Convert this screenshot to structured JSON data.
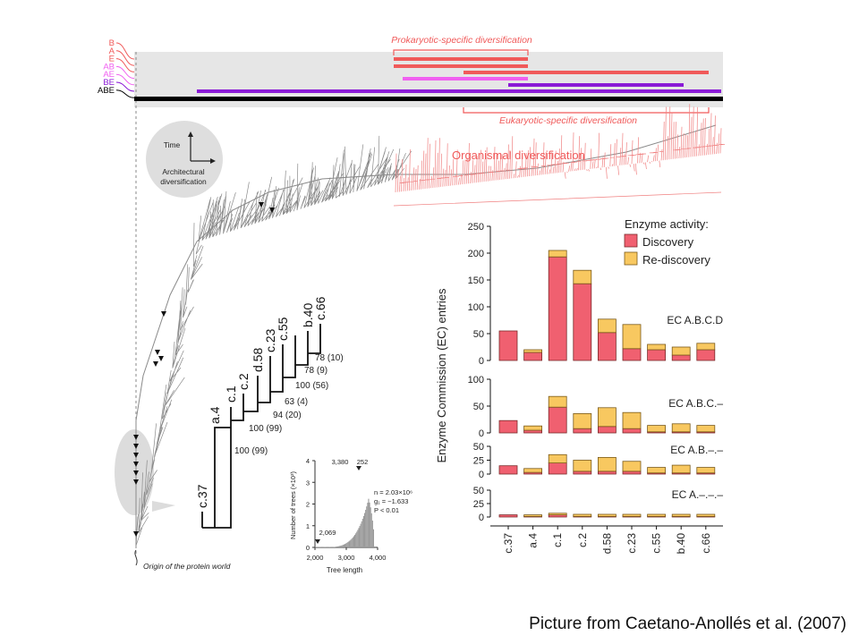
{
  "colors": {
    "prokaryotic": "#f05a5a",
    "pink": "#f060f0",
    "purple": "#8a1ad6",
    "black": "#000000",
    "tree_gray": "#8a8a8a",
    "tree_red": "#f08080",
    "discovery": "#f06070",
    "rediscovery": "#f8c860",
    "panel_gray": "#e6e6e6"
  },
  "timeline": {
    "labels": [
      "B",
      "A",
      "E",
      "AB",
      "AE",
      "BE",
      "ABE"
    ],
    "label_colors": [
      "#f05a5a",
      "#f05a5a",
      "#f05a5a",
      "#f060f0",
      "#f060f0",
      "#8a1ad6",
      "#000000"
    ],
    "prokaryotic_label": "Prokaryotic-specific diversification",
    "eukaryotic_label": "Eukaryotic-specific diversification"
  },
  "tree": {
    "organismal_label": "Organismal diversification",
    "axis_time": "Time",
    "axis_arch_line1": "Architectural",
    "axis_arch_line2": "diversification",
    "origin_label": "Origin of the protein world"
  },
  "subtree": {
    "leaves": [
      "c.37",
      "a.4",
      "c.1",
      "c.2",
      "d.58",
      "c.23",
      "c.55",
      "b.40",
      "c.66"
    ],
    "support": [
      "78 (10)",
      "78 (9)",
      "100 (56)",
      "63 (4)",
      "94 (20)",
      "100 (99)",
      "100 (99)"
    ]
  },
  "histogram": {
    "ylabel": "Number of trees (×10³)",
    "xlabel": "Tree length",
    "yticks": [
      "0",
      "1",
      "2",
      "3",
      "4"
    ],
    "xticks": [
      "2,000",
      "3,000",
      "4,000"
    ],
    "peak_label": "3,380",
    "peak_label2": "252",
    "min_label": "2,069",
    "stats": [
      "n = 2.03×10⁶",
      "g₁ = −1.633",
      "P < 0.01"
    ]
  },
  "chart_data": {
    "type": "bar",
    "stacked": true,
    "ylabel": "Enzyme Commission (EC) entries",
    "legend_title": "Enzyme activity:",
    "legend_position": "top-right",
    "categories": [
      "c.37",
      "a.4",
      "c.1",
      "c.2",
      "d.58",
      "c.23",
      "c.55",
      "b.40",
      "c.66"
    ],
    "panels": [
      {
        "label": "EC A.B.C.D",
        "ylim": [
          0,
          250
        ],
        "yticks": [
          0,
          50,
          100,
          150,
          200,
          250
        ],
        "series": [
          {
            "name": "Discovery",
            "values": [
              55,
              15,
              193,
              143,
              52,
              22,
              20,
              10,
              20
            ]
          },
          {
            "name": "Re-discovery",
            "values": [
              0,
              5,
              12,
              25,
              25,
              45,
              10,
              15,
              12
            ]
          }
        ]
      },
      {
        "label": "EC A.B.C.–",
        "ylim": [
          0,
          100
        ],
        "yticks": [
          0,
          50,
          100
        ],
        "series": [
          {
            "name": "Discovery",
            "values": [
              23,
              5,
              48,
              8,
              12,
              8,
              2,
              2,
              2
            ]
          },
          {
            "name": "Re-discovery",
            "values": [
              0,
              8,
              20,
              28,
              35,
              30,
              12,
              15,
              12
            ]
          }
        ]
      },
      {
        "label": "EC A.B.–.–",
        "ylim": [
          0,
          50
        ],
        "yticks": [
          0,
          25,
          50
        ],
        "series": [
          {
            "name": "Discovery",
            "values": [
              15,
              3,
              20,
              5,
              5,
              5,
              2,
              2,
              2
            ]
          },
          {
            "name": "Re-discovery",
            "values": [
              0,
              7,
              15,
              20,
              25,
              18,
              10,
              14,
              10
            ]
          }
        ]
      },
      {
        "label": "EC A.–.–.–",
        "ylim": [
          0,
          50
        ],
        "yticks": [
          0,
          25,
          50
        ],
        "series": [
          {
            "name": "Discovery",
            "values": [
              4,
              1,
              4,
              1,
              1,
              1,
              1,
              1,
              1
            ]
          },
          {
            "name": "Re-discovery",
            "values": [
              0,
              3,
              3,
              4,
              4,
              4,
              4,
              4,
              4
            ]
          }
        ]
      }
    ]
  },
  "caption": "Picture from Caetano-Anollés et al. (2007)"
}
